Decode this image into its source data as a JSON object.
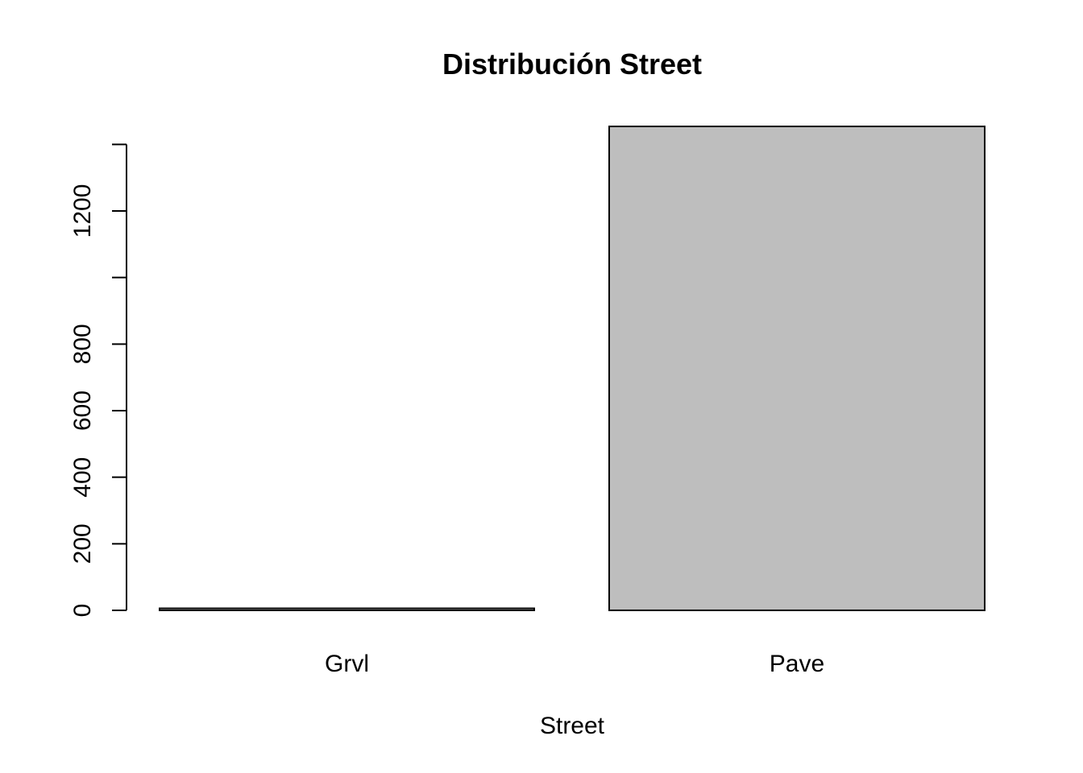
{
  "chart_data": {
    "type": "bar",
    "title": "Distribución Street",
    "xlabel": "Street",
    "ylabel": "",
    "categories": [
      "Grvl",
      "Pave"
    ],
    "values": [
      6,
      1454
    ],
    "ylim": [
      0,
      1454
    ],
    "y_ticks": [
      0,
      200,
      400,
      600,
      800,
      1000,
      1200,
      1400
    ],
    "y_tick_labels": [
      "0",
      "200",
      "400",
      "600",
      "800",
      "",
      "1200",
      ""
    ],
    "bar_color": "#bebebe",
    "grid": false,
    "legend": "none"
  }
}
